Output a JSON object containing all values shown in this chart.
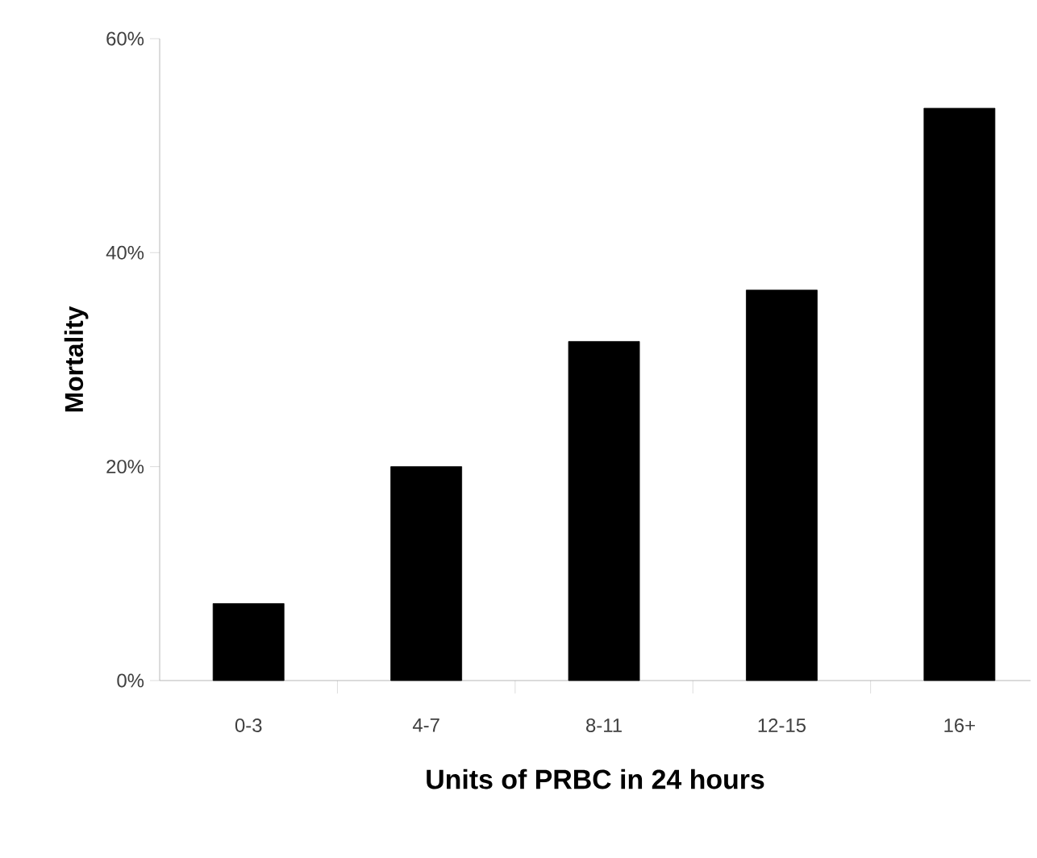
{
  "chart_data": {
    "type": "bar",
    "categories": [
      "0-3",
      "4-7",
      "8-11",
      "12-15",
      "16+"
    ],
    "values": [
      7.2,
      20,
      31.7,
      36.5,
      53.5
    ],
    "color": "#000000",
    "xlabel": "Units of PRBC in 24 hours",
    "ylabel": "Mortality",
    "ylim": [
      0,
      60
    ],
    "yticks": [
      {
        "value": 0,
        "label": "0%"
      },
      {
        "value": 20,
        "label": "20%"
      },
      {
        "value": 40,
        "label": "40%"
      },
      {
        "value": 60,
        "label": "60%"
      }
    ],
    "grid": false
  }
}
